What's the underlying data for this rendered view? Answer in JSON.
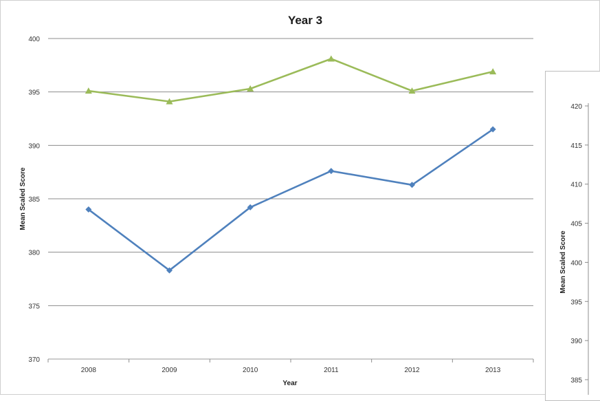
{
  "chart_data": [
    {
      "type": "line",
      "title": "Year 3",
      "xlabel": "Year",
      "ylabel": "Mean Scaled Score",
      "categories": [
        "2008",
        "2009",
        "2010",
        "2011",
        "2012",
        "2013"
      ],
      "ylim": [
        370,
        400
      ],
      "yticks": [
        370,
        375,
        380,
        385,
        390,
        395,
        400
      ],
      "grid": true,
      "series": [
        {
          "color": "#4f81bd",
          "marker": "diamond",
          "values": [
            384.0,
            378.3,
            384.2,
            387.6,
            386.3,
            391.5
          ]
        },
        {
          "color": "#9bbb59",
          "marker": "triangle",
          "values": [
            395.1,
            394.1,
            395.3,
            398.1,
            395.1,
            396.9
          ]
        }
      ]
    },
    {
      "type": "line",
      "title": "",
      "ylabel": "Mean Scaled Score",
      "ylim": [
        385,
        420
      ],
      "yticks": [
        385,
        390,
        395,
        400,
        405,
        410,
        415,
        420
      ],
      "grid": false,
      "partially_visible": true
    }
  ]
}
